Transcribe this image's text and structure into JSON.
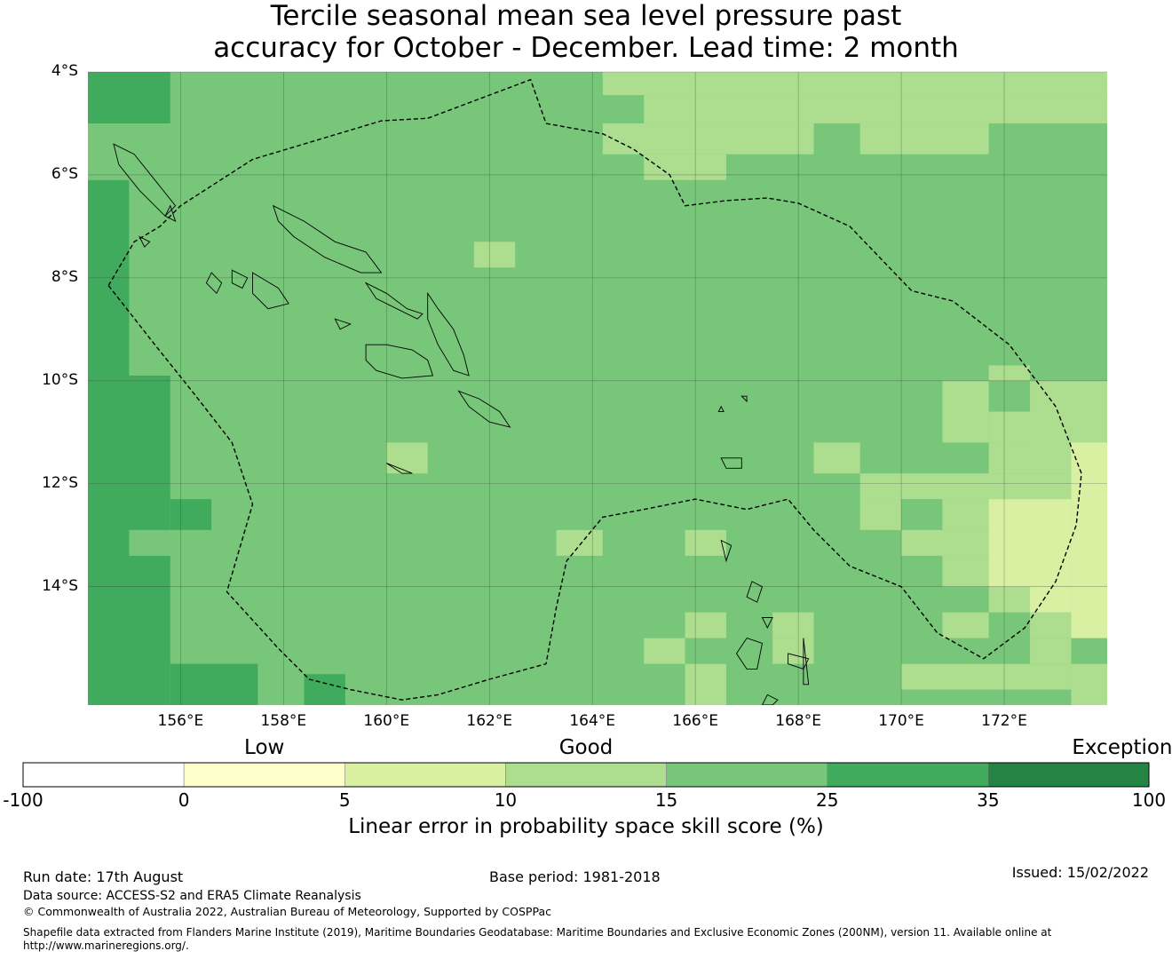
{
  "title": {
    "line1": "Tercile seasonal mean sea level pressure past",
    "line2": "accuracy for October - December. Lead time: 2 month"
  },
  "map": {
    "lon_range": [
      154.2,
      174.0
    ],
    "lat_range": [
      -16.3,
      -4.0
    ],
    "lat_labels": [
      "4°S",
      "6°S",
      "8°S",
      "10°S",
      "12°S",
      "14°S"
    ],
    "lon_labels": [
      "156°E",
      "158°E",
      "160°E",
      "162°E",
      "164°E",
      "166°E",
      "168°E",
      "170°E",
      "172°E"
    ],
    "grid_lats": [
      -4,
      -6,
      -8,
      -10,
      -12,
      -14
    ],
    "grid_lons": [
      156,
      158,
      160,
      162,
      164,
      166,
      168,
      170,
      172
    ],
    "cell_size_deg": 0.83,
    "background_color": "#78c67a",
    "skill_patches": [
      {
        "lon0": 154.2,
        "lon1": 155.8,
        "lat0": -4.0,
        "lat1": -5.0,
        "class": "25-35"
      },
      {
        "lon0": 154.2,
        "lon1": 155.0,
        "lat0": -6.1,
        "lat1": -9.9,
        "class": "25-35"
      },
      {
        "lon0": 154.2,
        "lon1": 155.8,
        "lat0": -9.9,
        "lat1": -16.3,
        "class": "25-35"
      },
      {
        "lon0": 155.8,
        "lon1": 156.6,
        "lat0": -12.3,
        "lat1": -12.9,
        "class": "25-35"
      },
      {
        "lon0": 155.8,
        "lon1": 157.5,
        "lat0": -15.5,
        "lat1": -16.3,
        "class": "25-35"
      },
      {
        "lon0": 158.4,
        "lon1": 159.2,
        "lat0": -15.7,
        "lat1": -16.3,
        "class": "25-35"
      },
      {
        "lon0": 154.2,
        "lon1": 155.0,
        "lat0": -5.6,
        "lat1": -6.1,
        "class": "15-25"
      },
      {
        "lon0": 155.0,
        "lon1": 157.5,
        "lat0": -12.9,
        "lat1": -13.4,
        "class": "15-25"
      },
      {
        "lon0": 164.2,
        "lon1": 174.0,
        "lat0": -4.0,
        "lat1": -4.45,
        "class": "10-15"
      },
      {
        "lon0": 165.0,
        "lon1": 174.0,
        "lat0": -4.45,
        "lat1": -5.0,
        "class": "10-15"
      },
      {
        "lon0": 164.2,
        "lon1": 168.3,
        "lat0": -5.0,
        "lat1": -5.6,
        "class": "10-15"
      },
      {
        "lon0": 169.2,
        "lon1": 171.7,
        "lat0": -5.0,
        "lat1": -5.6,
        "class": "10-15"
      },
      {
        "lon0": 165.0,
        "lon1": 166.6,
        "lat0": -5.6,
        "lat1": -6.1,
        "class": "10-15"
      },
      {
        "lon0": 161.7,
        "lon1": 162.5,
        "lat0": -7.3,
        "lat1": -7.8,
        "class": "10-15"
      },
      {
        "lon0": 171.7,
        "lon1": 172.5,
        "lat0": -9.7,
        "lat1": -10.0,
        "class": "10-15"
      },
      {
        "lon0": 170.8,
        "lon1": 171.7,
        "lat0": -10.0,
        "lat1": -11.2,
        "class": "10-15"
      },
      {
        "lon0": 172.5,
        "lon1": 174.0,
        "lat0": -10.0,
        "lat1": -11.2,
        "class": "10-15"
      },
      {
        "lon0": 171.7,
        "lon1": 173.3,
        "lat0": -10.6,
        "lat1": -11.2,
        "class": "10-15"
      },
      {
        "lon0": 171.7,
        "lon1": 173.3,
        "lat0": -11.2,
        "lat1": -11.8,
        "class": "10-15"
      },
      {
        "lon0": 168.3,
        "lon1": 169.2,
        "lat0": -11.2,
        "lat1": -11.8,
        "class": "10-15"
      },
      {
        "lon0": 169.2,
        "lon1": 173.3,
        "lat0": -11.8,
        "lat1": -12.3,
        "class": "10-15"
      },
      {
        "lon0": 169.2,
        "lon1": 170.0,
        "lat0": -12.3,
        "lat1": -12.9,
        "class": "10-15"
      },
      {
        "lon0": 170.8,
        "lon1": 171.7,
        "lat0": -12.3,
        "lat1": -12.9,
        "class": "10-15"
      },
      {
        "lon0": 170.0,
        "lon1": 171.7,
        "lat0": -12.9,
        "lat1": -13.4,
        "class": "10-15"
      },
      {
        "lon0": 170.8,
        "lon1": 171.7,
        "lat0": -13.4,
        "lat1": -14.0,
        "class": "10-15"
      },
      {
        "lon0": 171.7,
        "lon1": 172.5,
        "lat0": -14.0,
        "lat1": -14.5,
        "class": "10-15"
      },
      {
        "lon0": 170.8,
        "lon1": 171.7,
        "lat0": -14.5,
        "lat1": -15.0,
        "class": "10-15"
      },
      {
        "lon0": 172.5,
        "lon1": 173.3,
        "lat0": -14.5,
        "lat1": -15.0,
        "class": "10-15"
      },
      {
        "lon0": 172.5,
        "lon1": 173.3,
        "lat0": -15.0,
        "lat1": -15.5,
        "class": "10-15"
      },
      {
        "lon0": 170.0,
        "lon1": 173.3,
        "lat0": -15.5,
        "lat1": -16.0,
        "class": "10-15"
      },
      {
        "lon0": 173.3,
        "lon1": 174.0,
        "lat0": -15.5,
        "lat1": -16.3,
        "class": "10-15"
      },
      {
        "lon0": 160.0,
        "lon1": 160.8,
        "lat0": -11.2,
        "lat1": -11.8,
        "class": "10-15"
      },
      {
        "lon0": 163.3,
        "lon1": 164.2,
        "lat0": -12.9,
        "lat1": -13.4,
        "class": "10-15"
      },
      {
        "lon0": 165.8,
        "lon1": 166.6,
        "lat0": -12.9,
        "lat1": -13.4,
        "class": "10-15"
      },
      {
        "lon0": 165.8,
        "lon1": 166.6,
        "lat0": -14.5,
        "lat1": -15.0,
        "class": "10-15"
      },
      {
        "lon0": 167.5,
        "lon1": 168.3,
        "lat0": -14.5,
        "lat1": -15.0,
        "class": "10-15"
      },
      {
        "lon0": 165.0,
        "lon1": 165.8,
        "lat0": -15.0,
        "lat1": -15.5,
        "class": "10-15"
      },
      {
        "lon0": 167.5,
        "lon1": 168.3,
        "lat0": -15.0,
        "lat1": -15.5,
        "class": "10-15"
      },
      {
        "lon0": 165.8,
        "lon1": 166.6,
        "lat0": -15.5,
        "lat1": -16.3,
        "class": "10-15"
      },
      {
        "lon0": 173.3,
        "lon1": 174.0,
        "lat0": -11.2,
        "lat1": -15.0,
        "class": "5-10"
      },
      {
        "lon0": 171.7,
        "lon1": 173.3,
        "lat0": -12.3,
        "lat1": -14.0,
        "class": "5-10"
      },
      {
        "lon0": 172.5,
        "lon1": 173.3,
        "lat0": -14.0,
        "lat1": -14.5,
        "class": "5-10"
      }
    ],
    "eez_boundary": [
      [
        154.6,
        -8.15
      ],
      [
        155.1,
        -7.3
      ],
      [
        155.6,
        -7.0
      ],
      [
        156.0,
        -6.6
      ],
      [
        157.4,
        -5.7
      ],
      [
        159.9,
        -4.95
      ],
      [
        160.8,
        -4.9
      ],
      [
        162.8,
        -4.15
      ],
      [
        163.1,
        -5.0
      ],
      [
        164.2,
        -5.2
      ],
      [
        164.8,
        -5.5
      ],
      [
        165.5,
        -6.0
      ],
      [
        165.8,
        -6.6
      ],
      [
        166.6,
        -6.5
      ],
      [
        167.4,
        -6.45
      ],
      [
        168.0,
        -6.55
      ],
      [
        169.0,
        -7.0
      ],
      [
        170.2,
        -8.25
      ],
      [
        171.0,
        -8.45
      ],
      [
        172.1,
        -9.3
      ],
      [
        173.0,
        -10.5
      ],
      [
        173.5,
        -11.8
      ],
      [
        173.4,
        -12.8
      ],
      [
        173.0,
        -13.9
      ],
      [
        172.4,
        -14.8
      ],
      [
        171.6,
        -15.4
      ],
      [
        170.7,
        -14.9
      ],
      [
        170.0,
        -14.0
      ],
      [
        169.0,
        -13.6
      ],
      [
        168.3,
        -12.9
      ],
      [
        167.8,
        -12.3
      ],
      [
        167.0,
        -12.5
      ],
      [
        166.0,
        -12.3
      ],
      [
        165.0,
        -12.5
      ],
      [
        164.2,
        -12.65
      ],
      [
        163.5,
        -13.5
      ],
      [
        163.3,
        -14.4
      ],
      [
        163.1,
        -15.5
      ],
      [
        162.0,
        -15.8
      ],
      [
        161.0,
        -16.1
      ],
      [
        160.3,
        -16.2
      ],
      [
        159.3,
        -16.0
      ],
      [
        158.5,
        -15.8
      ],
      [
        157.9,
        -15.2
      ],
      [
        156.9,
        -14.1
      ],
      [
        157.4,
        -12.4
      ],
      [
        157.0,
        -11.2
      ],
      [
        156.3,
        -10.3
      ],
      [
        155.5,
        -9.3
      ],
      [
        154.6,
        -8.15
      ]
    ],
    "islands": [
      [
        [
          157.8,
          -6.6
        ],
        [
          158.4,
          -6.9
        ],
        [
          159.0,
          -7.3
        ],
        [
          159.6,
          -7.5
        ],
        [
          159.9,
          -7.9
        ],
        [
          159.5,
          -7.9
        ],
        [
          158.8,
          -7.6
        ],
        [
          158.2,
          -7.2
        ],
        [
          157.9,
          -6.9
        ]
      ],
      [
        [
          159.6,
          -8.1
        ],
        [
          160.0,
          -8.3
        ],
        [
          160.4,
          -8.6
        ],
        [
          160.7,
          -8.7
        ],
        [
          160.6,
          -8.8
        ],
        [
          160.2,
          -8.6
        ],
        [
          159.8,
          -8.4
        ]
      ],
      [
        [
          160.8,
          -8.3
        ],
        [
          161.0,
          -8.6
        ],
        [
          161.3,
          -9.0
        ],
        [
          161.5,
          -9.5
        ],
        [
          161.6,
          -9.9
        ],
        [
          161.3,
          -9.8
        ],
        [
          161.0,
          -9.3
        ],
        [
          160.8,
          -8.8
        ]
      ],
      [
        [
          159.6,
          -9.3
        ],
        [
          160.0,
          -9.3
        ],
        [
          160.5,
          -9.4
        ],
        [
          160.8,
          -9.6
        ],
        [
          160.9,
          -9.9
        ],
        [
          160.3,
          -9.95
        ],
        [
          159.8,
          -9.8
        ],
        [
          159.6,
          -9.6
        ]
      ],
      [
        [
          161.4,
          -10.2
        ],
        [
          161.8,
          -10.35
        ],
        [
          162.2,
          -10.6
        ],
        [
          162.4,
          -10.9
        ],
        [
          162.0,
          -10.8
        ],
        [
          161.6,
          -10.5
        ]
      ],
      [
        [
          154.7,
          -5.4
        ],
        [
          155.1,
          -5.6
        ],
        [
          155.5,
          -6.1
        ],
        [
          155.9,
          -6.6
        ],
        [
          155.7,
          -6.8
        ],
        [
          155.2,
          -6.3
        ],
        [
          154.8,
          -5.8
        ]
      ],
      [
        [
          157.0,
          -7.85
        ],
        [
          157.3,
          -8.0
        ],
        [
          157.2,
          -8.2
        ],
        [
          157.0,
          -8.1
        ]
      ],
      [
        [
          157.4,
          -7.9
        ],
        [
          157.9,
          -8.2
        ],
        [
          158.1,
          -8.5
        ],
        [
          157.7,
          -8.6
        ],
        [
          157.4,
          -8.3
        ]
      ],
      [
        [
          156.6,
          -7.9
        ],
        [
          156.8,
          -8.1
        ],
        [
          156.7,
          -8.3
        ],
        [
          156.5,
          -8.1
        ]
      ],
      [
        [
          160.0,
          -11.6
        ],
        [
          160.5,
          -11.8
        ],
        [
          160.3,
          -11.8
        ]
      ],
      [
        [
          167.0,
          -15.0
        ],
        [
          167.3,
          -15.1
        ],
        [
          167.2,
          -15.6
        ],
        [
          167.0,
          -15.6
        ],
        [
          166.8,
          -15.3
        ]
      ],
      [
        [
          167.8,
          -15.3
        ],
        [
          168.2,
          -15.4
        ],
        [
          168.1,
          -15.6
        ],
        [
          167.8,
          -15.5
        ]
      ],
      [
        [
          166.5,
          -11.5
        ],
        [
          166.9,
          -11.5
        ],
        [
          166.9,
          -11.7
        ],
        [
          166.6,
          -11.7
        ]
      ],
      [
        [
          167.4,
          -16.1
        ],
        [
          167.6,
          -16.2
        ],
        [
          167.5,
          -16.3
        ],
        [
          167.3,
          -16.3
        ]
      ],
      [
        [
          168.1,
          -15.0
        ],
        [
          168.2,
          -15.9
        ],
        [
          168.1,
          -15.9
        ]
      ],
      [
        [
          167.1,
          -13.9
        ],
        [
          167.3,
          -14.0
        ],
        [
          167.2,
          -14.3
        ],
        [
          167.0,
          -14.2
        ]
      ],
      [
        [
          167.3,
          -14.6
        ],
        [
          167.5,
          -14.6
        ],
        [
          167.4,
          -14.8
        ]
      ],
      [
        [
          166.5,
          -13.1
        ],
        [
          166.7,
          -13.2
        ],
        [
          166.6,
          -13.5
        ]
      ],
      [
        [
          155.8,
          -6.6
        ],
        [
          155.9,
          -6.9
        ],
        [
          155.7,
          -6.8
        ]
      ],
      [
        [
          155.2,
          -7.2
        ],
        [
          155.4,
          -7.3
        ],
        [
          155.3,
          -7.4
        ]
      ],
      [
        [
          159.0,
          -8.8
        ],
        [
          159.3,
          -8.9
        ],
        [
          159.1,
          -9.0
        ]
      ],
      [
        [
          166.9,
          -10.3
        ],
        [
          167.0,
          -10.3
        ],
        [
          167.0,
          -10.4
        ]
      ],
      [
        [
          166.5,
          -10.5
        ],
        [
          166.55,
          -10.6
        ],
        [
          166.45,
          -10.6
        ]
      ]
    ]
  },
  "colorbar": {
    "categories": [
      {
        "label": "Low",
        "align": "center",
        "at": "1.5"
      },
      {
        "label": "Good",
        "align": "center",
        "at": "3.5"
      },
      {
        "label": "Exceptional",
        "align": "right",
        "at": "7"
      }
    ],
    "ticks": [
      "-100",
      "0",
      "5",
      "10",
      "15",
      "25",
      "35",
      "100"
    ],
    "bins": [
      {
        "from": -100,
        "to": 0,
        "color": "#ffffff"
      },
      {
        "from": 0,
        "to": 5,
        "color": "#ffffcc"
      },
      {
        "from": 5,
        "to": 10,
        "color": "#d9f0a3"
      },
      {
        "from": 10,
        "to": 15,
        "color": "#addd8e"
      },
      {
        "from": 15,
        "to": 25,
        "color": "#78c67a"
      },
      {
        "from": 25,
        "to": 35,
        "color": "#41ab5d"
      },
      {
        "from": 35,
        "to": 100,
        "color": "#238443"
      }
    ],
    "title": "Linear error in probability space skill score (%)"
  },
  "footer": {
    "run_date": "Run date: 17th August",
    "base_period": "Base period: 1981-2018",
    "issued": "Issued: 15/02/2022",
    "data_source": "Data source: ACCESS-S2 and ERA5 Climate Reanalysis",
    "copyright": "© Commonwealth of Australia 2022, Australian Bureau of Meteorology, Supported by COSPPac",
    "shapefile_line1": "Shapefile data extracted from Flanders Marine Institute (2019), Maritime Boundaries Geodatabase: Maritime Boundaries and Exclusive Economic Zones (200NM), version 11. Available online at",
    "shapefile_line2": "http://www.marineregions.org/."
  }
}
